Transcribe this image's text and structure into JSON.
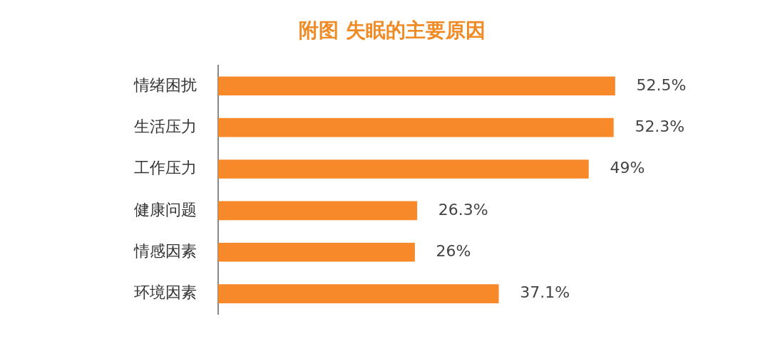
{
  "chart_data": {
    "type": "bar",
    "orientation": "horizontal",
    "title": "附图 失眠的主要原因",
    "categories": [
      "情绪困扰",
      "生活压力",
      "工作压力",
      "健康问题",
      "情感因素",
      "环境因素"
    ],
    "values": [
      52.5,
      52.3,
      49,
      26.3,
      26,
      37.1
    ],
    "value_labels": [
      "52.5%",
      "52.3%",
      "49%",
      "26.3%",
      "26%",
      "37.1%"
    ],
    "color": "#f7892a",
    "grid": false,
    "legend": false
  }
}
